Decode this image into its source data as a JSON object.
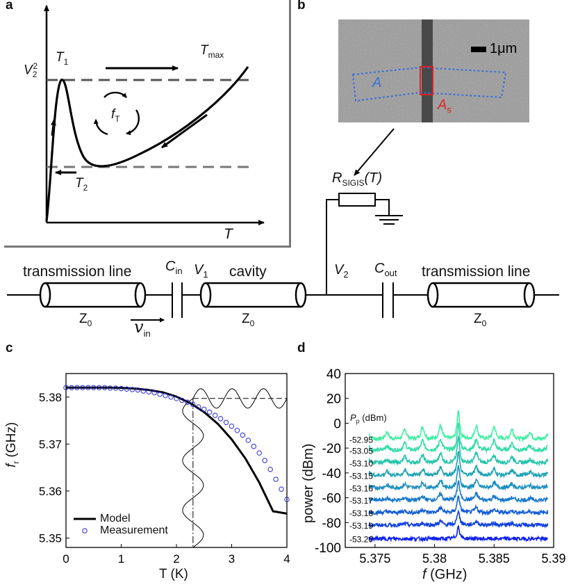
{
  "panel_labels": {
    "a": "a",
    "b": "b",
    "c": "c",
    "d": "d"
  },
  "panel_a": {
    "ylabel_base": "V",
    "ylabel_sub": "2",
    "ylabel_sup": "2",
    "xlabel": "T",
    "t1_base": "T",
    "t1_sub": "1",
    "t2_base": "T",
    "t2_sub": "2",
    "tmax_base": "T",
    "tmax_sub": "max",
    "fT_base": "f",
    "fT_sub": "T"
  },
  "panel_b": {
    "scalebar": "1μm",
    "region_A": "A",
    "region_As_base": "A",
    "region_As_sub": "s",
    "resistor_base": "R",
    "resistor_sub": "SIGIS",
    "resistor_arg": "(T)",
    "colors": {
      "region_A": "#3a6fd8",
      "region_As": "#e02020"
    }
  },
  "circuit": {
    "tl_left": "transmission line",
    "tl_right": "transmission line",
    "cavity": "cavity",
    "z0_base": "Z",
    "z0_sub": "0",
    "cin_base": "C",
    "cin_sub": "in",
    "cout_base": "C",
    "cout_sub": "out",
    "v1_base": "V",
    "v1_sub": "1",
    "v2_base": "V",
    "v2_sub": "2",
    "vin_base": "v",
    "vin_sub": "in"
  },
  "chart_data": [
    {
      "panel": "c",
      "type": "line",
      "xlabel": "T (K)",
      "ylabel_base": "f",
      "ylabel_sub": "r",
      "ylabel_rest": " (GHz)",
      "xlim": [
        0,
        4
      ],
      "ylim": [
        5.348,
        5.385
      ],
      "xticks": [
        0,
        1,
        2,
        3,
        4
      ],
      "yticks": [
        5.35,
        5.36,
        5.37,
        5.38
      ],
      "legend": {
        "placement": "bottom-left",
        "model": "Model",
        "measurement": "Measurement"
      },
      "colors": {
        "model": "#000000",
        "measurement": "#2a2ad8"
      },
      "series": [
        {
          "name": "Model",
          "kind": "line",
          "x": [
            0,
            0.25,
            0.5,
            0.75,
            1.0,
            1.25,
            1.5,
            1.75,
            2.0,
            2.25,
            2.5,
            2.75,
            3.0,
            3.25,
            3.5,
            3.75,
            4.0
          ],
          "y": [
            5.382,
            5.382,
            5.382,
            5.382,
            5.38195,
            5.3818,
            5.3815,
            5.381,
            5.3801,
            5.3787,
            5.3768,
            5.3743,
            5.371,
            5.3669,
            5.3618,
            5.3557,
            5.3552
          ]
        },
        {
          "name": "Measurement",
          "kind": "scatter",
          "x": [
            0,
            0.1,
            0.2,
            0.3,
            0.4,
            0.5,
            0.6,
            0.7,
            0.8,
            0.9,
            1.0,
            1.1,
            1.2,
            1.3,
            1.4,
            1.5,
            1.6,
            1.7,
            1.8,
            1.9,
            2.0,
            2.1,
            2.2,
            2.3,
            2.4,
            2.5,
            2.6,
            2.7,
            2.8,
            2.9,
            3.0,
            3.1,
            3.2,
            3.3,
            3.4,
            3.5,
            3.6,
            3.7,
            3.8,
            3.9,
            4.0
          ],
          "y": [
            5.382,
            5.382,
            5.382,
            5.382,
            5.382,
            5.382,
            5.382,
            5.382,
            5.3819,
            5.3819,
            5.3818,
            5.3817,
            5.3816,
            5.3815,
            5.3813,
            5.3811,
            5.3809,
            5.3806,
            5.3803,
            5.38,
            5.3797,
            5.3793,
            5.3789,
            5.3784,
            5.3779,
            5.3774,
            5.3768,
            5.3761,
            5.3754,
            5.3746,
            5.3738,
            5.3729,
            5.3719,
            5.3708,
            5.3695,
            5.3681,
            5.3665,
            5.3646,
            5.3625,
            5.3604,
            5.3582
          ]
        }
      ],
      "annotation": {
        "t_dash": 2.3,
        "f_dash": 5.3797
      }
    },
    {
      "panel": "d",
      "type": "line",
      "xlabel_base": "f",
      "xlabel_rest": " (GHz)",
      "ylabel": "power (dBm)",
      "xlim": [
        5.3725,
        5.39
      ],
      "ylim": [
        -100,
        40
      ],
      "xticks": [
        5.375,
        5.38,
        5.385,
        5.39
      ],
      "xtick_labels": [
        "5.375",
        "5.38",
        "5.385",
        "5.39"
      ],
      "yticks": [
        -100,
        -80,
        -60,
        -40,
        -20,
        0,
        20,
        40
      ],
      "legend_title_base": "P",
      "legend_title_sub": "p",
      "legend_title_rest": " (dBm)",
      "center_freq": 5.382,
      "comb_spacing": 0.0015,
      "series": [
        {
          "name": "-52.95",
          "baseline": -13,
          "color": "#3ef0a0",
          "peaks": [
            24,
            11,
            10,
            8,
            6,
            4,
            3
          ]
        },
        {
          "name": "-53.05",
          "baseline": -22,
          "color": "#30dca6",
          "peaks": [
            22,
            9,
            8,
            6,
            4,
            3,
            2
          ]
        },
        {
          "name": "-53.10",
          "baseline": -32,
          "color": "#25c4aa",
          "peaks": [
            21,
            8,
            6,
            5,
            3,
            2,
            1.5
          ]
        },
        {
          "name": "-53.15",
          "baseline": -42,
          "color": "#1fa3b4",
          "peaks": [
            20,
            7,
            5,
            4,
            3,
            2,
            1
          ]
        },
        {
          "name": "-53.16",
          "baseline": -52,
          "color": "#1c8fc0",
          "peaks": [
            18,
            6,
            4,
            3,
            2,
            1.5,
            1
          ]
        },
        {
          "name": "-53.17",
          "baseline": -62,
          "color": "#1877cc",
          "peaks": [
            16,
            5,
            3,
            2,
            1.5,
            1,
            0.5
          ]
        },
        {
          "name": "-53.18",
          "baseline": -72,
          "color": "#145dd6",
          "peaks": [
            14,
            4,
            2.5,
            1.5,
            1,
            0.5,
            0
          ]
        },
        {
          "name": "-53.19",
          "baseline": -82,
          "color": "#1040e0",
          "peaks": [
            12,
            3,
            1.5,
            1,
            0,
            0,
            0
          ]
        },
        {
          "name": "-53.20",
          "baseline": -93,
          "color": "#0c1ef0",
          "peaks": [
            10,
            0,
            0,
            0,
            0,
            0,
            0
          ]
        }
      ]
    }
  ]
}
